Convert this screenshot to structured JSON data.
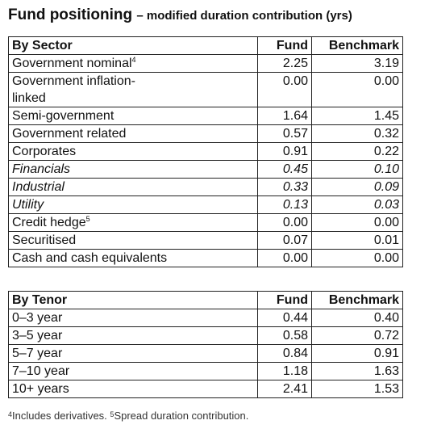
{
  "title": "Fund positioning",
  "subtitle": "– modified duration contribution (yrs)",
  "tables": [
    {
      "header": [
        "By Sector",
        "Fund",
        "Benchmark"
      ],
      "rows": [
        {
          "cells": [
            "Government nominal",
            "2.25",
            "3.19"
          ],
          "note": "4"
        },
        {
          "cells": [
            "Government inflation-linked",
            "0.00",
            "0.00"
          ]
        },
        {
          "cells": [
            "Semi-government",
            "1.64",
            "1.45"
          ]
        },
        {
          "cells": [
            "Government related",
            "0.57",
            "0.32"
          ]
        },
        {
          "cells": [
            "Corporates",
            "0.91",
            "0.22"
          ]
        },
        {
          "cells": [
            "Financials",
            "0.45",
            "0.10"
          ],
          "italic": true
        },
        {
          "cells": [
            "Industrial",
            "0.33",
            "0.09"
          ],
          "italic": true
        },
        {
          "cells": [
            "Utility",
            "0.13",
            "0.03"
          ],
          "italic": true
        },
        {
          "cells": [
            "Credit hedge",
            "0.00",
            "0.00"
          ],
          "note": "5"
        },
        {
          "cells": [
            "Securitised",
            "0.07",
            "0.01"
          ]
        },
        {
          "cells": [
            "Cash and cash equivalents",
            "0.00",
            "0.00"
          ]
        }
      ]
    },
    {
      "header": [
        "By Tenor",
        "Fund",
        "Benchmark"
      ],
      "rows": [
        {
          "cells": [
            "0–3 year",
            "0.44",
            "0.40"
          ]
        },
        {
          "cells": [
            "3–5 year",
            "0.58",
            "0.72"
          ]
        },
        {
          "cells": [
            "5–7 year",
            "0.84",
            "0.91"
          ]
        },
        {
          "cells": [
            "7–10 year",
            "1.18",
            "1.63"
          ]
        },
        {
          "cells": [
            "10+ years",
            "2.41",
            "1.53"
          ]
        }
      ]
    }
  ],
  "footnotes": [
    {
      "mark": "4",
      "text": "Includes derivatives."
    },
    {
      "mark": "5",
      "text": "Spread duration contribution."
    }
  ]
}
